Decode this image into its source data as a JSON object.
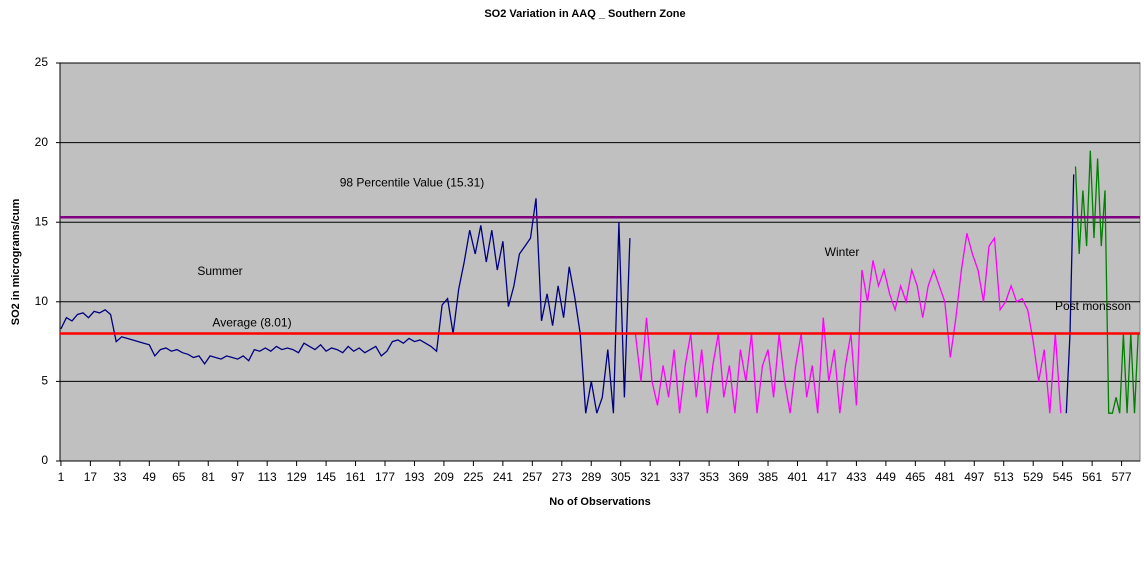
{
  "chart_data": {
    "type": "line",
    "title": "SO2 Variation in AAQ _ Southern Zone",
    "x_label": "No of Observations",
    "y_label": "SO2 in micrograms/cum",
    "xlim": [
      0.5,
      587
    ],
    "ylim": [
      0,
      25
    ],
    "xticks": [
      1,
      17,
      33,
      49,
      65,
      81,
      97,
      113,
      129,
      145,
      161,
      177,
      193,
      209,
      225,
      241,
      257,
      273,
      289,
      305,
      321,
      337,
      353,
      369,
      385,
      401,
      417,
      433,
      449,
      465,
      481,
      497,
      513,
      529,
      545,
      561,
      577
    ],
    "yticks": [
      0,
      5,
      10,
      15,
      20,
      25
    ],
    "grid": true,
    "background": "#c0c0c0",
    "annotations": [
      "Summer",
      "Winter",
      "Post monsson"
    ],
    "reference_lines": [
      {
        "label": "Average (8.01)",
        "value": 8.01,
        "color": "#ff0000"
      },
      {
        "label": "98 Percentile Value (15.31)",
        "value": 15.31,
        "color": "#800080"
      }
    ],
    "series": [
      {
        "color": "#000080",
        "x": [
          1,
          4,
          7,
          10,
          13,
          16,
          19,
          22,
          25,
          28,
          31,
          34,
          37,
          40,
          43,
          46,
          49,
          52,
          55,
          58,
          61,
          64,
          67,
          70,
          73,
          76,
          79,
          82,
          85,
          88,
          91,
          94,
          97,
          100,
          103,
          106,
          109,
          112,
          115,
          118,
          121,
          124,
          127,
          130,
          133,
          136,
          139,
          142,
          145,
          148,
          151,
          154,
          157,
          160,
          163,
          166,
          169,
          172,
          175,
          178,
          181,
          184,
          187,
          190,
          193,
          196,
          199,
          202,
          205,
          208,
          211,
          214,
          217,
          220,
          223,
          226,
          229,
          232,
          235,
          238,
          241,
          244,
          247,
          250,
          253,
          256,
          259,
          262,
          265,
          268,
          271,
          274,
          277,
          280,
          283,
          286,
          289,
          292,
          295,
          298,
          301,
          304,
          307,
          310,
          312,
          547,
          549,
          551
        ],
        "values": [
          8.3,
          9.0,
          8.8,
          9.2,
          9.3,
          9.0,
          9.4,
          9.3,
          9.5,
          9.2,
          7.5,
          7.8,
          7.7,
          7.6,
          7.5,
          7.4,
          7.3,
          6.6,
          7.0,
          7.1,
          6.9,
          7.0,
          6.8,
          6.7,
          6.5,
          6.6,
          6.1,
          6.6,
          6.5,
          6.4,
          6.6,
          6.5,
          6.4,
          6.6,
          6.3,
          7.0,
          6.9,
          7.1,
          6.9,
          7.2,
          7.0,
          7.1,
          7.0,
          6.8,
          7.4,
          7.2,
          7.0,
          7.3,
          6.9,
          7.1,
          7.0,
          6.8,
          7.2,
          6.9,
          7.1,
          6.8,
          7.0,
          7.2,
          6.6,
          6.9,
          7.5,
          7.6,
          7.4,
          7.7,
          7.5,
          7.6,
          7.4,
          7.2,
          6.9,
          9.8,
          10.2,
          8.0,
          10.8,
          12.5,
          14.5,
          13.0,
          14.8,
          12.5,
          14.5,
          12.0,
          13.8,
          9.7,
          11.0,
          13.0,
          13.5,
          14.0,
          16.5,
          8.8,
          10.5,
          8.5,
          11.0,
          9.0,
          12.2,
          10.3,
          8.0,
          3.0,
          5.0,
          3.0,
          4.0,
          7.0,
          3.0,
          15.0,
          4.0,
          14.0,
          null,
          3.0,
          8.0,
          18.0
        ]
      },
      {
        "color": "#ff00ff",
        "x": [
          313,
          316,
          319,
          322,
          325,
          328,
          331,
          334,
          337,
          340,
          343,
          346,
          349,
          352,
          355,
          358,
          361,
          364,
          367,
          370,
          373,
          376,
          379,
          382,
          385,
          388,
          391,
          394,
          397,
          400,
          403,
          406,
          409,
          412,
          415,
          418,
          421,
          424,
          427,
          430,
          433,
          436,
          439,
          442,
          445,
          448,
          451,
          454,
          457,
          460,
          463,
          466,
          469,
          472,
          475,
          478,
          481,
          484,
          487,
          490,
          493,
          496,
          499,
          502,
          505,
          508,
          511,
          514,
          517,
          520,
          523,
          526,
          529,
          532,
          535,
          538,
          541,
          544
        ],
        "values": [
          8,
          5,
          9,
          5,
          3.5,
          6,
          4,
          7,
          3,
          6,
          8,
          4,
          7,
          3,
          6,
          8,
          4,
          6,
          3,
          7,
          5,
          8,
          3,
          6,
          7,
          4,
          8,
          5,
          3,
          6,
          8,
          4,
          6,
          3,
          9,
          5,
          7,
          3,
          6,
          8,
          3.5,
          12,
          10,
          12.6,
          11,
          12,
          10.5,
          9.5,
          11,
          10,
          12,
          11,
          9,
          11,
          12,
          11,
          10,
          6.5,
          9,
          12,
          14.3,
          13,
          12,
          10,
          13.5,
          14,
          9.5,
          10,
          11,
          10,
          10.2,
          9.5,
          7.5,
          5,
          7,
          3,
          8,
          3
        ]
      },
      {
        "color": "#008000",
        "x": [
          552,
          554,
          556,
          558,
          560,
          562,
          564,
          566,
          568,
          570,
          572,
          574,
          576,
          578,
          580,
          582,
          584,
          586
        ],
        "values": [
          18.5,
          13,
          17,
          13.5,
          19.5,
          14,
          19,
          13.5,
          17,
          3,
          3,
          4,
          3,
          8,
          3,
          8,
          3,
          8
        ]
      }
    ]
  }
}
